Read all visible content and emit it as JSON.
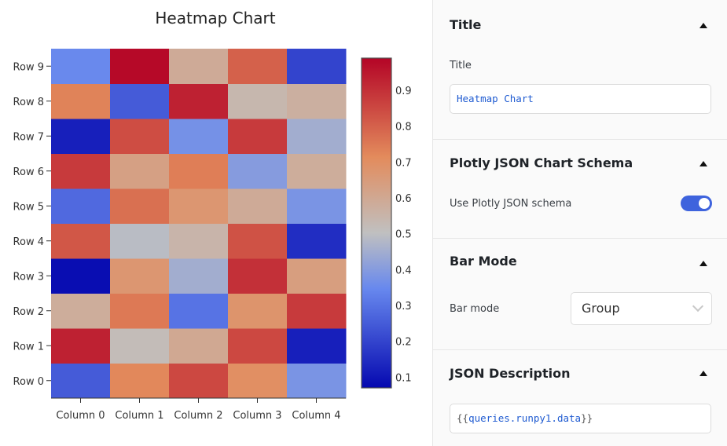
{
  "chart_data": {
    "type": "heatmap",
    "title": "Heatmap Chart",
    "x": [
      "Column 0",
      "Column 1",
      "Column 2",
      "Column 3",
      "Column 4"
    ],
    "y": [
      "Row 0",
      "Row 1",
      "Row 2",
      "Row 3",
      "Row 4",
      "Row 5",
      "Row 6",
      "Row 7",
      "Row 8",
      "Row 9"
    ],
    "z": [
      [
        0.25,
        0.72,
        0.85,
        0.7,
        0.38
      ],
      [
        0.93,
        0.52,
        0.6,
        0.85,
        0.12
      ],
      [
        0.58,
        0.75,
        0.3,
        0.68,
        0.88
      ],
      [
        0.08,
        0.67,
        0.45,
        0.9,
        0.64
      ],
      [
        0.82,
        0.49,
        0.55,
        0.83,
        0.15
      ],
      [
        0.28,
        0.77,
        0.67,
        0.59,
        0.38
      ],
      [
        0.88,
        0.63,
        0.74,
        0.4,
        0.58
      ],
      [
        0.12,
        0.84,
        0.37,
        0.88,
        0.45
      ],
      [
        0.73,
        0.25,
        0.93,
        0.54,
        0.57
      ],
      [
        0.35,
        0.98,
        0.59,
        0.8,
        0.2
      ]
    ],
    "zmin": 0.07,
    "zmax": 0.99,
    "colorbar_ticks": [
      0.1,
      0.2,
      0.3,
      0.4,
      0.5,
      0.6,
      0.7,
      0.8,
      0.9
    ],
    "colorbar_tick_labels": [
      "0.1",
      "0.2",
      "0.3",
      "0.4",
      "0.5",
      "0.6",
      "0.7",
      "0.8",
      "0.9"
    ],
    "colorscale": [
      [
        0,
        "#0508b0"
      ],
      [
        0.3,
        "#6788ee"
      ],
      [
        0.47,
        "#c0c0c0"
      ],
      [
        0.7,
        "#e38b5c"
      ],
      [
        1,
        "#b40426"
      ]
    ],
    "legend": "colorbar-right"
  },
  "panel": {
    "title_section": {
      "header": "Title",
      "label": "Title",
      "value": "Heatmap Chart"
    },
    "schema_section": {
      "header": "Plotly JSON Chart Schema",
      "label": "Use Plotly JSON schema",
      "toggle_on": true
    },
    "barmode_section": {
      "header": "Bar Mode",
      "label": "Bar mode",
      "value": "Group"
    },
    "json_section": {
      "header": "JSON Description",
      "value_open": "{{",
      "value_expr": "queries.runpy1.data",
      "value_close": "}}"
    }
  },
  "colors": {
    "accent": "#3e63dd",
    "code_blue": "#1f5bd1",
    "code_purple": "#7b3fb0"
  }
}
